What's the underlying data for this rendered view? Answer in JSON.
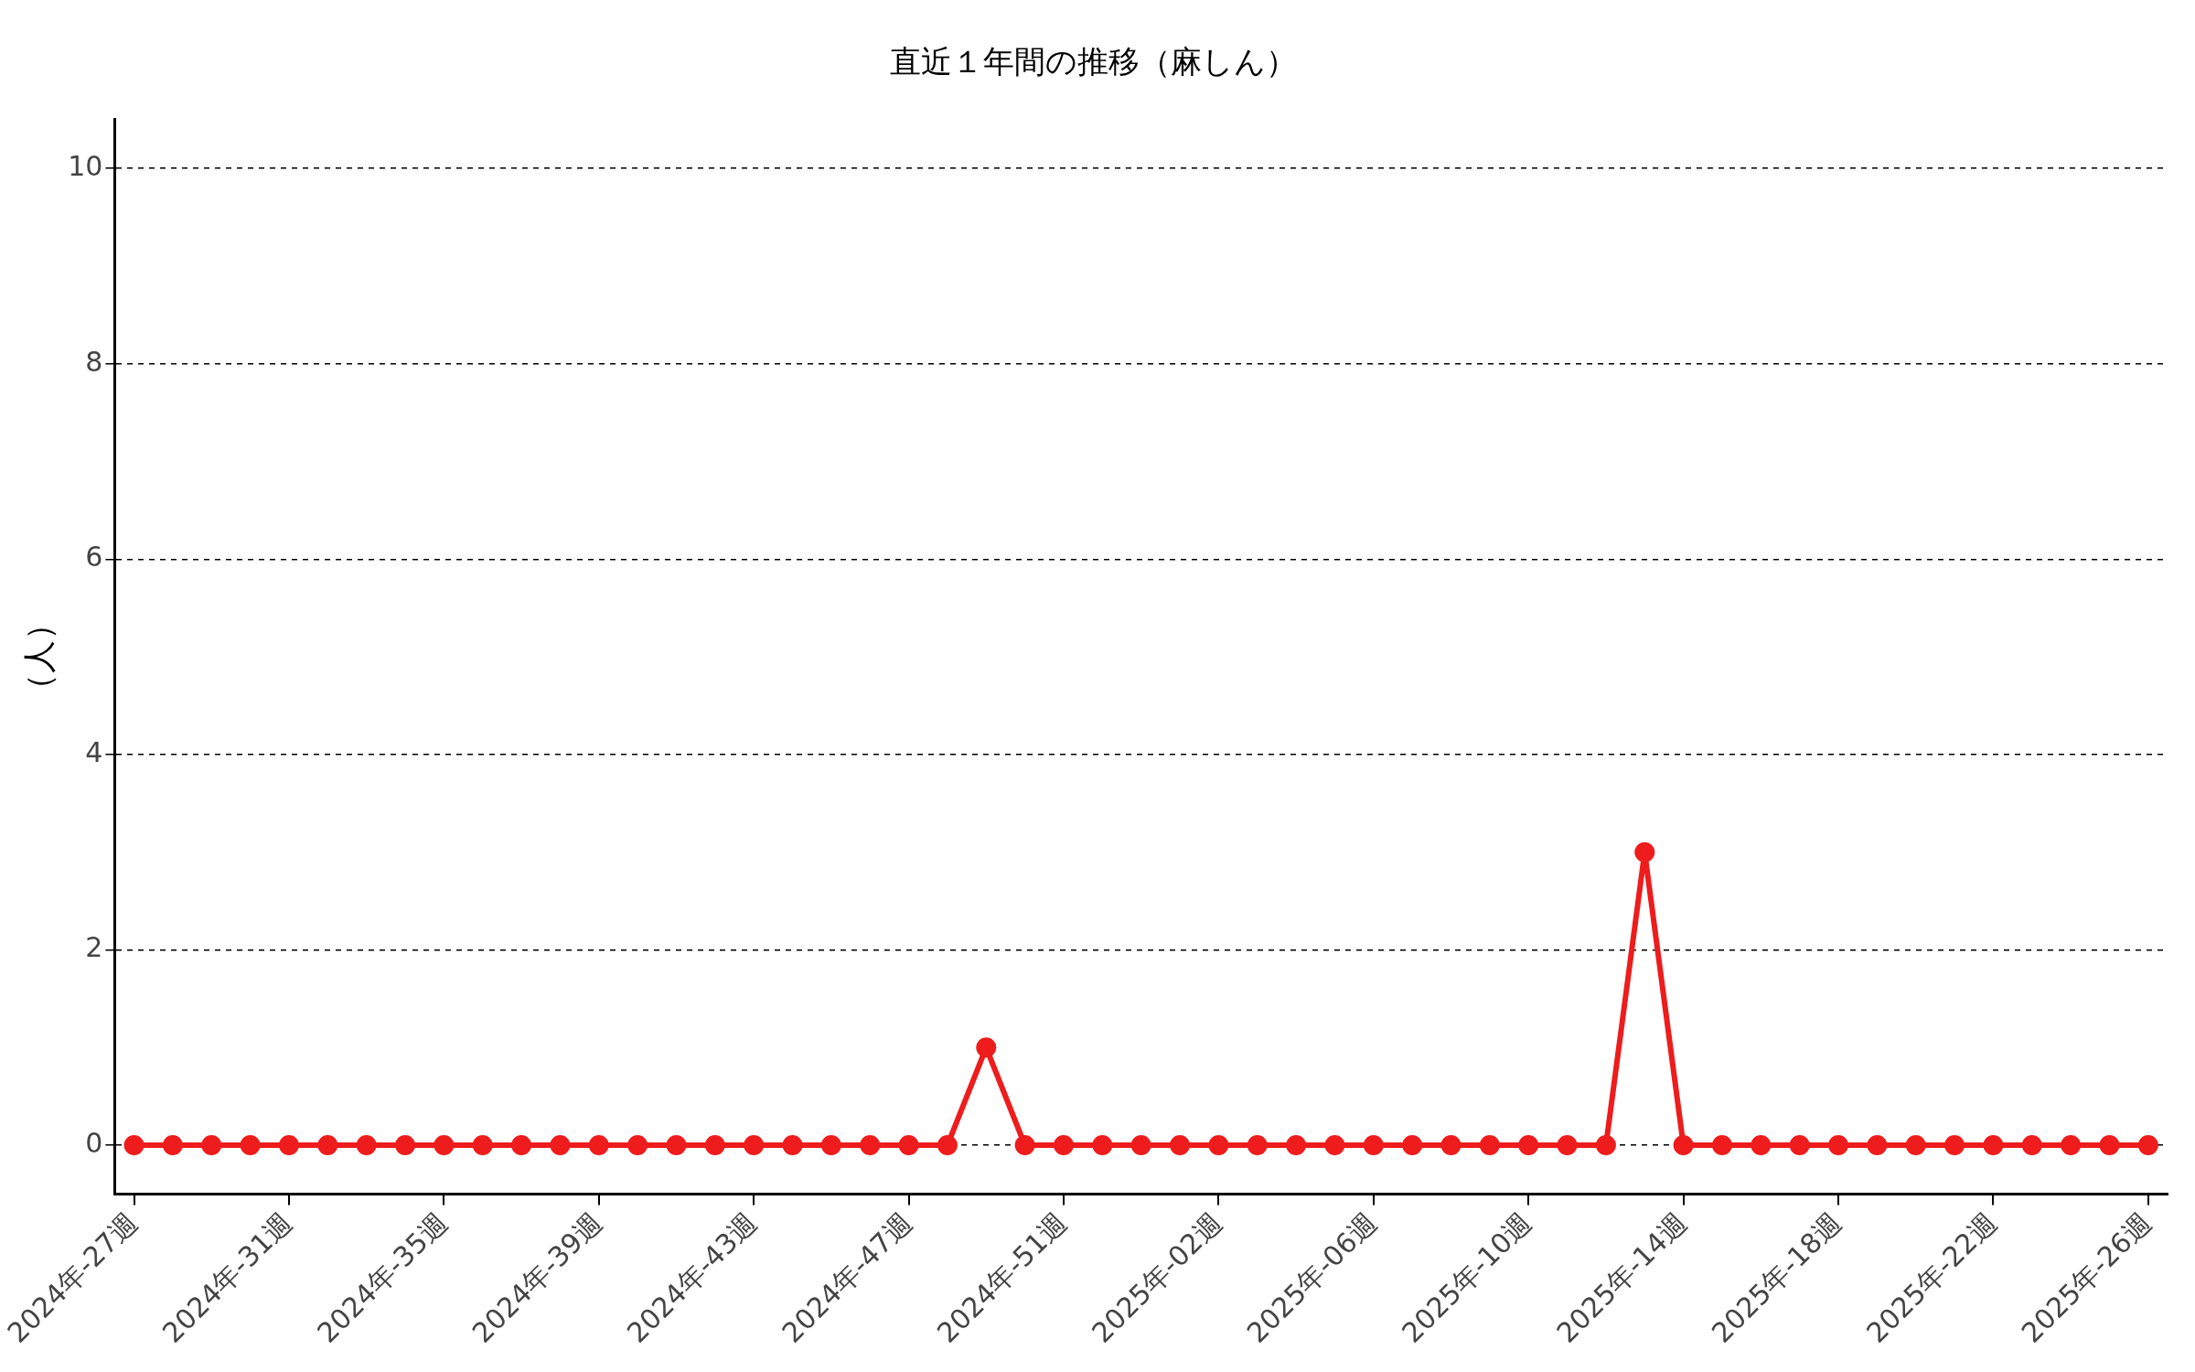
{
  "chart_data": {
    "type": "line",
    "title": "直近１年間の推移（麻しん）",
    "ylabel": "（人）",
    "categories": [
      "2024年-27週",
      null,
      null,
      null,
      "2024年-31週",
      null,
      null,
      null,
      "2024年-35週",
      null,
      null,
      null,
      "2024年-39週",
      null,
      null,
      null,
      "2024年-43週",
      null,
      null,
      null,
      "2024年-47週",
      null,
      null,
      null,
      "2024年-51週",
      null,
      null,
      null,
      "2025年-02週",
      null,
      null,
      null,
      "2025年-06週",
      null,
      null,
      null,
      "2025年-10週",
      null,
      null,
      null,
      "2025年-14週",
      null,
      null,
      null,
      "2025年-18週",
      null,
      null,
      null,
      "2025年-22週",
      null,
      null,
      null,
      "2025年-26週"
    ],
    "series": [
      {
        "color": "#ee1c1c",
        "values": [
          0,
          0,
          0,
          0,
          0,
          0,
          0,
          0,
          0,
          0,
          0,
          0,
          0,
          0,
          0,
          0,
          0,
          0,
          0,
          0,
          0,
          0,
          1,
          0,
          0,
          0,
          0,
          0,
          0,
          0,
          0,
          0,
          0,
          0,
          0,
          0,
          0,
          0,
          0,
          3,
          0,
          0,
          0,
          0,
          0,
          0,
          0,
          0,
          0,
          0,
          0,
          0,
          0
        ]
      }
    ],
    "ylim": [
      -0.5,
      10.5
    ],
    "yticks": [
      0,
      2,
      4,
      6,
      8,
      10
    ],
    "grid": "y",
    "legend": false,
    "marker": "circle",
    "line_style": "solid"
  }
}
